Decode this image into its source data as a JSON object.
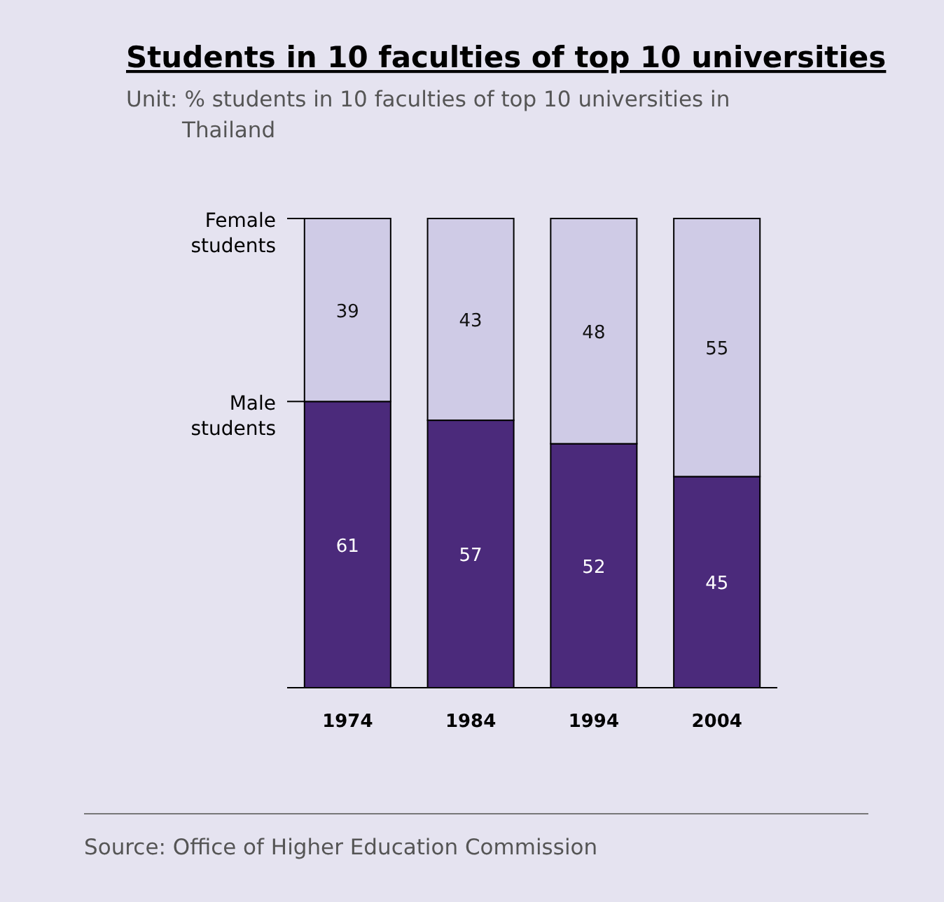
{
  "chart_data": {
    "type": "bar",
    "title": "Students in 10 faculties of top 10 universities",
    "subtitle": "Unit: % students in 10 faculties of top 10 universities in Thailand",
    "categories": [
      "1974",
      "1984",
      "1994",
      "2004"
    ],
    "series": [
      {
        "name": "Male students",
        "color": "#4b2a7b",
        "values": [
          61,
          57,
          52,
          45
        ]
      },
      {
        "name": "Female students",
        "color": "#cfcbe6",
        "values": [
          39,
          43,
          48,
          55
        ]
      }
    ],
    "stacked": true,
    "ylim": [
      0,
      100
    ],
    "tick_labels": "x",
    "data_labels": true,
    "legend": "left",
    "annotations": [
      "Source: Office of Higher Education Commission"
    ]
  }
}
